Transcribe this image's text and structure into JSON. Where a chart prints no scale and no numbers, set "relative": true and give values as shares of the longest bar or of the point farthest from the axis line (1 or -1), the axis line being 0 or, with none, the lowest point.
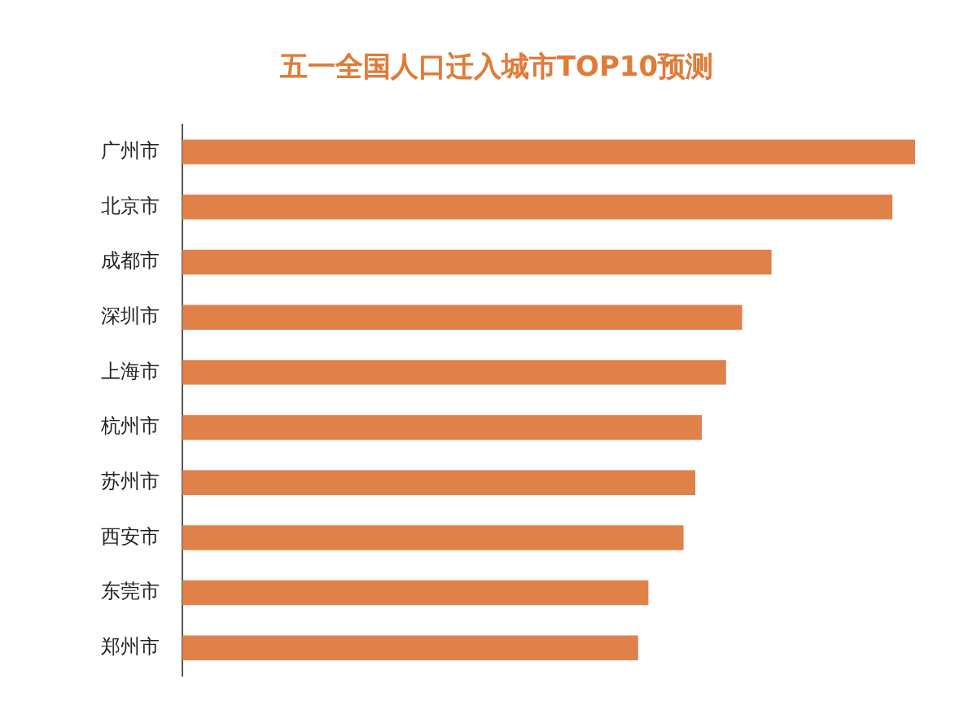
{
  "chart_data": {
    "type": "bar",
    "orientation": "horizontal",
    "relative": true,
    "title": "五一全国人口迁入城市TOP10预测",
    "categories": [
      "广州市",
      "北京市",
      "成都市",
      "深圳市",
      "上海市",
      "杭州市",
      "苏州市",
      "西安市",
      "东莞市",
      "郑州市"
    ],
    "values": [
      1,
      0.969,
      0.804,
      0.764,
      0.742,
      0.709,
      0.7,
      0.684,
      0.636,
      0.622
    ],
    "color": "#e0814a",
    "grid": false,
    "legend": false
  }
}
